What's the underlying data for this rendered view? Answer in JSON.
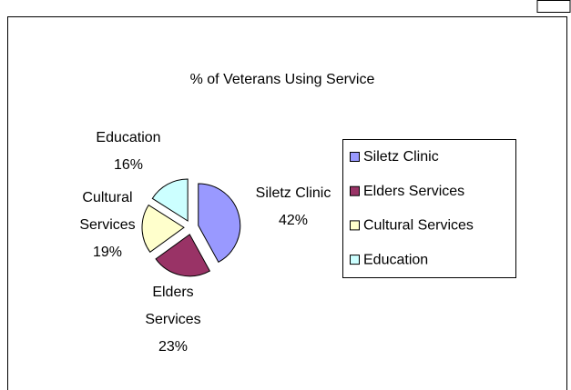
{
  "chart_data": {
    "type": "pie",
    "title": "% of Veterans Using Service",
    "categories": [
      "Siletz Clinic",
      "Elders Services",
      "Cultural Services",
      "Education"
    ],
    "values": [
      42,
      23,
      19,
      16
    ],
    "value_labels": [
      "42%",
      "23%",
      "19%",
      "16%"
    ],
    "colors": [
      "#9999ff",
      "#993366",
      "#ffffcc",
      "#ccffff"
    ],
    "legend": "right"
  }
}
